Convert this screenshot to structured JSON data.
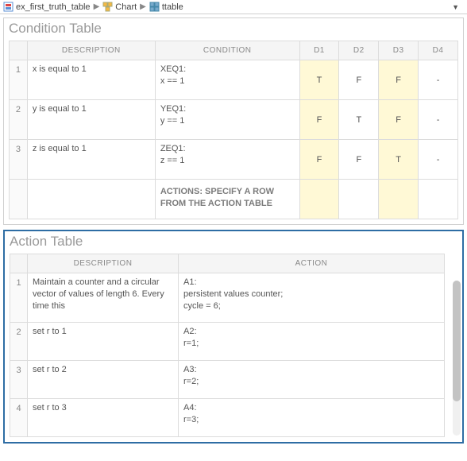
{
  "breadcrumb": {
    "items": [
      {
        "label": "ex_first_truth_table"
      },
      {
        "label": "Chart"
      },
      {
        "label": "ttable"
      }
    ]
  },
  "condition_panel": {
    "title": "Condition Table",
    "headers": {
      "desc": "DESCRIPTION",
      "cond": "CONDITION",
      "d1": "D1",
      "d2": "D2",
      "d3": "D3",
      "d4": "D4"
    },
    "rows": [
      {
        "n": "1",
        "desc": "x is equal to 1",
        "cond": "XEQ1:\nx == 1",
        "d": [
          "T",
          "F",
          "F",
          "-"
        ],
        "hl": [
          true,
          false,
          true,
          false
        ]
      },
      {
        "n": "2",
        "desc": "y is equal to 1",
        "cond": "YEQ1:\ny == 1",
        "d": [
          "F",
          "T",
          "F",
          "-"
        ],
        "hl": [
          true,
          false,
          true,
          false
        ]
      },
      {
        "n": "3",
        "desc": "z is equal to 1",
        "cond": "ZEQ1:\nz == 1",
        "d": [
          "F",
          "F",
          "T",
          "-"
        ],
        "hl": [
          true,
          false,
          true,
          false
        ]
      }
    ],
    "footer_label": "ACTIONS: SPECIFY A ROW FROM THE ACTION TABLE",
    "footer_hl": [
      true,
      false,
      true,
      false
    ]
  },
  "action_panel": {
    "title": "Action Table",
    "headers": {
      "desc": "DESCRIPTION",
      "act": "ACTION"
    },
    "rows": [
      {
        "n": "1",
        "desc": "Maintain a counter and a circular vector of values of length 6. Every time this",
        "act": "A1:\npersistent values counter;\ncycle = 6;"
      },
      {
        "n": "2",
        "desc": "set r to 1",
        "act": "A2:\nr=1;"
      },
      {
        "n": "3",
        "desc": "set r to 2",
        "act": "A3:\nr=2;"
      },
      {
        "n": "4",
        "desc": "set r to 3",
        "act": "A4:\nr=3;"
      }
    ]
  }
}
